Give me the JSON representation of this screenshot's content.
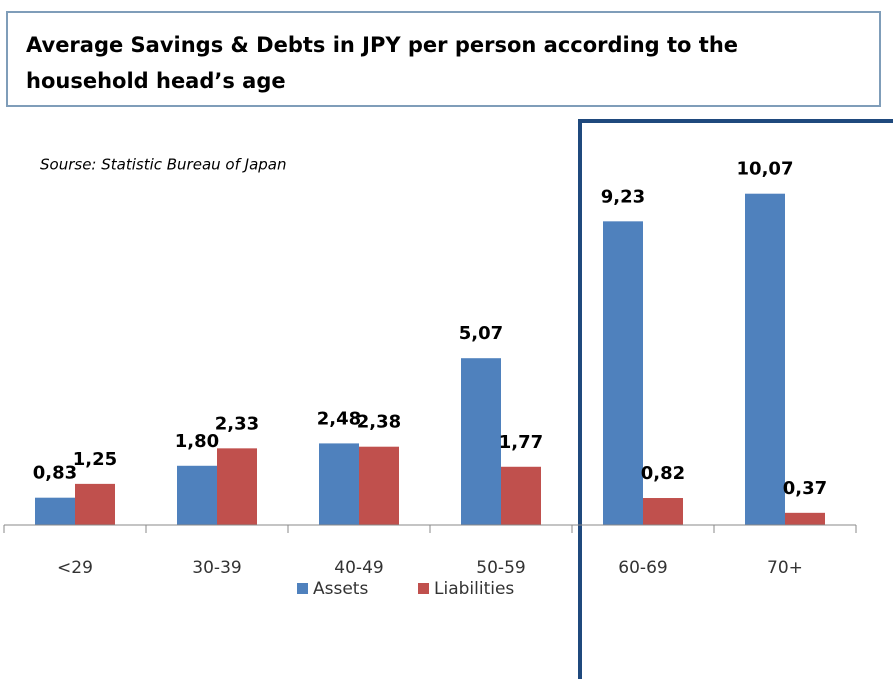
{
  "chart_data": {
    "type": "bar",
    "title": "Average Savings & Debts in JPY per person according to the household head’s age",
    "title_lines": [
      "Average Savings & Debts in JPY per person according to the",
      "household head’s age"
    ],
    "source": "Sourse: Statistic Bureau of Japan",
    "categories": [
      "<29",
      "30-39",
      "40-49",
      "50-59",
      "60-69",
      "70+"
    ],
    "series": [
      {
        "name": "Assets",
        "color": "#4f81bd",
        "values": [
          0.83,
          1.8,
          2.48,
          5.07,
          9.23,
          10.07
        ],
        "value_labels": [
          "0,83",
          "1,80",
          "2,48",
          "5,07",
          "9,23",
          "10,07"
        ]
      },
      {
        "name": "Liabilities",
        "color": "#c0504d",
        "values": [
          1.25,
          2.33,
          2.38,
          1.77,
          0.82,
          0.37
        ],
        "value_labels": [
          "1,25",
          "2,33",
          "2,38",
          "1,77",
          "0,82",
          "0,37"
        ]
      }
    ]
  }
}
